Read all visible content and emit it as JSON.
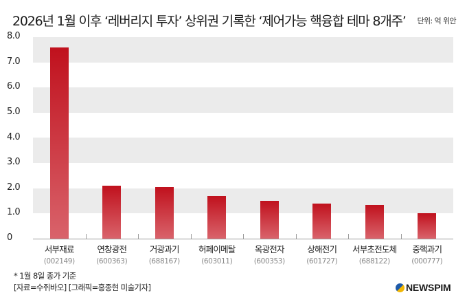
{
  "header": {
    "title": "2026년 1월 이후 ‘레버리지 투자’ 상위권 기록한 ‘제어가능 핵융합 테마 8개주’",
    "unit": "단위: 억 위안"
  },
  "chart_data": {
    "type": "bar",
    "title": "2026년 1월 이후 ‘레버리지 투자’ 상위권 기록한 ‘제어가능 핵융합 테마 8개주’",
    "xlabel": "",
    "ylabel": "단위: 억 위안",
    "ylim": [
      0,
      8
    ],
    "yticks": [
      "0",
      "1.0",
      "2.0",
      "3.0",
      "4.0",
      "5.0",
      "6.0",
      "7.0",
      "8.0"
    ],
    "grid": "alternating horizontal bands",
    "legend": null,
    "categories": [
      "서부재료",
      "연창광전",
      "거광과기",
      "허페이메탈",
      "옥광전자",
      "상해전기",
      "서부초전도체",
      "중핵과기"
    ],
    "codes": [
      "(002149)",
      "(600363)",
      "(688167)",
      "(603011)",
      "(600353)",
      "(601727)",
      "(688122)",
      "(000777)"
    ],
    "values": [
      7.6,
      2.1,
      2.05,
      1.7,
      1.5,
      1.4,
      1.35,
      1.0
    ],
    "bar_color_top": "#c0111d",
    "bar_color_bottom": "#d9636b"
  },
  "footer": {
    "note": "* 1월 8일 종가 기준",
    "source": "[자료=수쥐바오] [그래픽=홍종현 미술기자]",
    "logo_text": "NEWSPIM"
  }
}
